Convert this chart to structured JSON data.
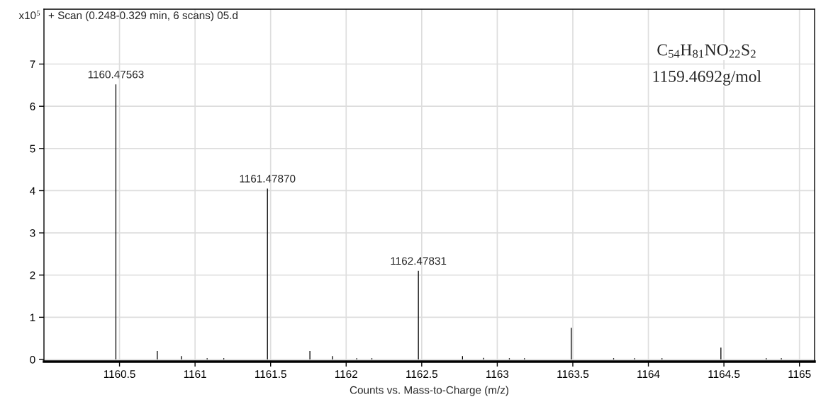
{
  "chart_data": {
    "type": "bar",
    "title": "+ Scan (0.248-0.329 min, 6 scans) 05.d",
    "xlabel": "Counts vs. Mass-to-Charge (m/z)",
    "ylabel": "x10$^{5}$",
    "x": [
      1160.476,
      1160.75,
      1160.91,
      1161.08,
      1161.19,
      1161.479,
      1161.76,
      1161.91,
      1162.07,
      1162.17,
      1162.478,
      1162.77,
      1162.91,
      1163.08,
      1163.18,
      1163.49,
      1163.77,
      1163.91,
      1164.09,
      1164.48,
      1164.78,
      1164.88
    ],
    "series": [
      {
        "color": "#000000",
        "values": [
          6.52,
          0.2,
          0.08,
          0.03,
          0.03,
          4.05,
          0.2,
          0.08,
          0.03,
          0.03,
          2.1,
          0.08,
          0.04,
          0.03,
          0.03,
          0.75,
          0.03,
          0.03,
          0.03,
          0.28,
          0.03,
          0.03
        ]
      }
    ],
    "xlim": [
      1160.0,
      1165.1
    ],
    "xticks": [
      1160.5,
      1161,
      1161.5,
      1162,
      1162.5,
      1163,
      1163.5,
      1164,
      1164.5,
      1165
    ],
    "ylim": [
      -0.05,
      8.3
    ],
    "yticks": [
      0,
      1,
      2,
      3,
      4,
      5,
      6,
      7
    ],
    "grid": true,
    "annotations": [
      {
        "text": "1160.47563",
        "x": 1160.476,
        "y": 6.52
      },
      {
        "text": "1161.47870",
        "x": 1161.479,
        "y": 4.05
      },
      {
        "text": "1162.47831",
        "x": 1162.478,
        "y": 2.1
      },
      "C$_{54}$H$_{81}$NO$_{22}$S$_{2}$",
      "1159.4692g/mol"
    ]
  }
}
